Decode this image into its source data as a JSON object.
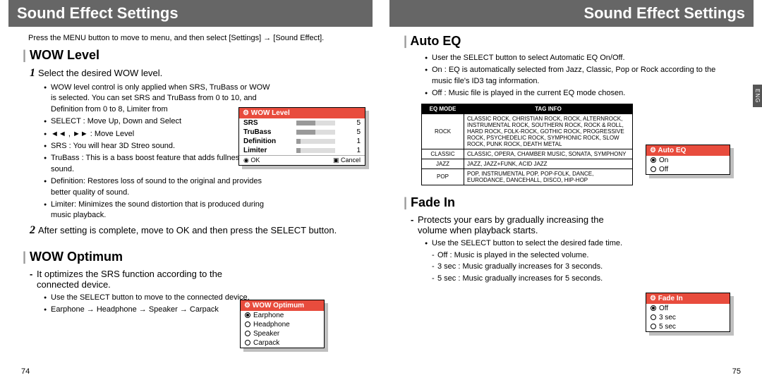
{
  "left": {
    "banner": "Sound Effect Settings",
    "note": "Press the MENU button to move to menu, and then select [Settings] → [Sound Effect].",
    "wow_level": {
      "title": "WOW Level",
      "step1": "Select the desired WOW level.",
      "bullets1": [
        "WOW level control is only applied when SRS, TruBass or WOW is selected. You can set SRS and TruBass from 0 to 10, and Definition from 0 to 8, Limiter from",
        "SELECT : Move Up, Down and Select",
        "◄◄ , ►► : Move Level",
        "SRS : You will hear 3D Streo sound.",
        "TruBass : This is a bass boost feature that adds fullness to the sound.",
        "Definition: Restores loss of sound to the original and provides better quality of sound.",
        "Limiter: Minimizes the sound distortion that is produced during music playback."
      ],
      "step2": "After setting is complete, move to OK and then press the SELECT button.",
      "widget": {
        "title": "WOW Level",
        "rows": [
          {
            "label": "SRS",
            "value": "5",
            "fill_pct": 50
          },
          {
            "label": "TruBass",
            "value": "5",
            "fill_pct": 50
          },
          {
            "label": "Definition",
            "value": "1",
            "fill_pct": 12
          },
          {
            "label": "Limiter",
            "value": "1",
            "fill_pct": 12
          }
        ],
        "foot_left": "◉ OK",
        "foot_right": "▣ Cancel"
      }
    },
    "wow_optimum": {
      "title": "WOW Optimum",
      "intro": "It optimizes the SRS function according to the connected device.",
      "bullets": [
        "Use the SELECT button to move to the connected device.",
        "Earphone → Headphone → Speaker → Carpack"
      ],
      "widget": {
        "title": "WOW Optimum",
        "options": [
          {
            "label": "Earphone",
            "on": true
          },
          {
            "label": "Headphone",
            "on": false
          },
          {
            "label": "Speaker",
            "on": false
          },
          {
            "label": "Carpack",
            "on": false
          }
        ]
      }
    },
    "pagenum": "74"
  },
  "right": {
    "banner": "Sound Effect Settings",
    "auto_eq": {
      "title": "Auto EQ",
      "bullets": [
        "User the SELECT button to select Automatic EQ On/Off.",
        "On : EQ is automatically selected from Jazz, Classic, Pop or Rock according to the music file's ID3 tag information.",
        "Off : Music file is played in the current EQ mode chosen."
      ],
      "table": {
        "head_mode": "EQ MODE",
        "head_tag": "TAG INFO",
        "rows": [
          {
            "mode": "ROCK",
            "tag": "CLASSIC ROCK, CHRISTIAN ROCK, ROCK, ALTERNROCK, INSTRUMENTAL ROCK, SOUTHERN ROCK, ROCK & ROLL, HARD ROCK, FOLK-ROCK, GOTHIC ROCK, PROGRESSIVE ROCK, PSYCHEDELIC ROCK, SYMPHONIC ROCK, SLOW ROCK, PUNK ROCK, DEATH METAL"
          },
          {
            "mode": "CLASSIC",
            "tag": "CLASSIC, OPERA, CHAMBER MUSIC, SONATA, SYMPHONY"
          },
          {
            "mode": "JAZZ",
            "tag": "JAZZ, JAZZ+FUNK, ACID JAZZ"
          },
          {
            "mode": "POP",
            "tag": "POP, INSTRUMENTAL POP, POP-FOLK, DANCE, EURODANCE, DANCEHALL, DISCO, HIP-HOP"
          }
        ]
      },
      "widget": {
        "title": "Auto EQ",
        "options": [
          {
            "label": "On",
            "on": true
          },
          {
            "label": "Off",
            "on": false
          }
        ]
      }
    },
    "fade_in": {
      "title": "Fade In",
      "intro": "Protects your ears by gradually increasing the volume when playback starts.",
      "bullets": [
        "Use the SELECT button to select the desired fade time."
      ],
      "dash": [
        "Off : Music is played in the selected volume.",
        "3 sec : Music gradually increases for 3 seconds.",
        "5 sec : Music gradually increases for 5 seconds."
      ],
      "widget": {
        "title": "Fade In",
        "options": [
          {
            "label": "Off",
            "on": true
          },
          {
            "label": "3 sec",
            "on": false
          },
          {
            "label": "5 sec",
            "on": false
          }
        ]
      }
    },
    "eng_tab": "ENG",
    "pagenum": "75"
  }
}
